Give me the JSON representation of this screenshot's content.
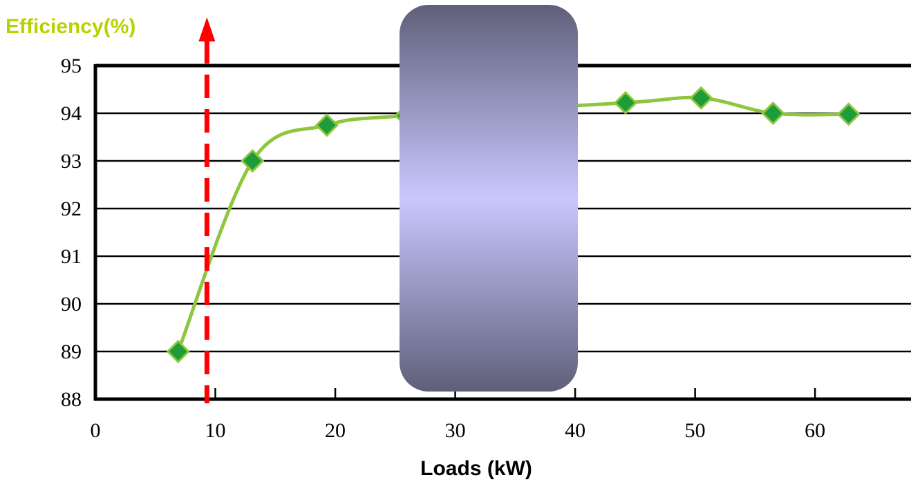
{
  "chart_data": {
    "type": "line",
    "ylabel": "Efficiency(%)",
    "xlabel": "Loads (kW)",
    "xlim": [
      0,
      68
    ],
    "ylim": [
      88,
      95
    ],
    "x_ticks": [
      0,
      10,
      20,
      30,
      40,
      50,
      60
    ],
    "y_ticks": [
      88,
      89,
      90,
      91,
      92,
      93,
      94,
      95
    ],
    "grid": true,
    "series": [
      {
        "color": "#8ec63f",
        "marker_color": "#1e9c3a",
        "x": [
          6.9,
          13.1,
          19.3,
          25.9,
          44.2,
          50.5,
          56.5,
          62.8
        ],
        "y": [
          89.0,
          93.0,
          93.75,
          93.95,
          94.22,
          94.32,
          94.0,
          93.98
        ]
      }
    ],
    "annotations": [
      {
        "type": "vertical-dashed-arrow",
        "x": 9.3,
        "color": "#ff0000"
      }
    ],
    "overlay": {
      "type": "occluding-box",
      "colors": [
        "#5f5f7a",
        "#c8c8ff",
        "#5f5f7a"
      ]
    }
  }
}
